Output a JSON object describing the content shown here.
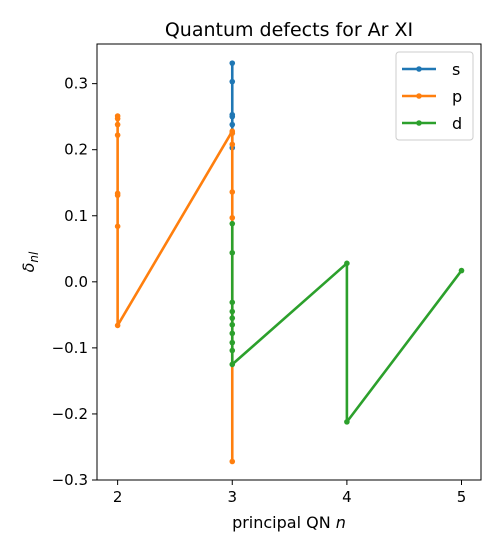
{
  "chart_data": {
    "type": "line",
    "title": "Quantum defects for Ar XI",
    "xlabel": "principal QN",
    "xlabel_var": "n",
    "ylabel_symbol": "δ",
    "ylabel_sub": "nl",
    "xlim": [
      1.82,
      5.17
    ],
    "ylim": [
      -0.3,
      0.36
    ],
    "xticks": [
      {
        "value": 2,
        "label": "2"
      },
      {
        "value": 3,
        "label": "3"
      },
      {
        "value": 4,
        "label": "4"
      },
      {
        "value": 5,
        "label": "5"
      }
    ],
    "yticks": [
      {
        "value": -0.3,
        "label": "−0.3"
      },
      {
        "value": -0.2,
        "label": "−0.2"
      },
      {
        "value": -0.1,
        "label": "−0.1"
      },
      {
        "value": 0.0,
        "label": "0.0"
      },
      {
        "value": 0.1,
        "label": "0.1"
      },
      {
        "value": 0.2,
        "label": "0.2"
      },
      {
        "value": 0.3,
        "label": "0.3"
      }
    ],
    "grid": false,
    "legend_position": "top-right",
    "series": [
      {
        "name": "s",
        "color": "#1f77b4",
        "points": [
          [
            3,
            0.331
          ],
          [
            3,
            0.303
          ],
          [
            3,
            0.253
          ],
          [
            3,
            0.25
          ],
          [
            3,
            0.238
          ],
          [
            3,
            0.225
          ],
          [
            3,
            0.203
          ]
        ]
      },
      {
        "name": "p",
        "color": "#ff7f0e",
        "points": [
          [
            2,
            0.251
          ],
          [
            2,
            0.247
          ],
          [
            2,
            0.238
          ],
          [
            2,
            0.222
          ],
          [
            2,
            0.134
          ],
          [
            2,
            0.131
          ],
          [
            2,
            0.084
          ],
          [
            2,
            -0.066
          ],
          [
            3,
            0.228
          ],
          [
            3,
            0.225
          ],
          [
            3,
            0.208
          ],
          [
            3,
            0.136
          ],
          [
            3,
            0.097
          ],
          [
            3,
            -0.272
          ]
        ]
      },
      {
        "name": "d",
        "color": "#2ca02c",
        "points": [
          [
            3,
            0.088
          ],
          [
            3,
            0.044
          ],
          [
            3,
            -0.031
          ],
          [
            3,
            -0.045
          ],
          [
            3,
            -0.055
          ],
          [
            3,
            -0.065
          ],
          [
            3,
            -0.078
          ],
          [
            3,
            -0.092
          ],
          [
            3,
            -0.104
          ],
          [
            3,
            -0.125
          ],
          [
            4,
            0.028
          ],
          [
            4,
            -0.212
          ],
          [
            5,
            0.017
          ]
        ]
      }
    ]
  }
}
